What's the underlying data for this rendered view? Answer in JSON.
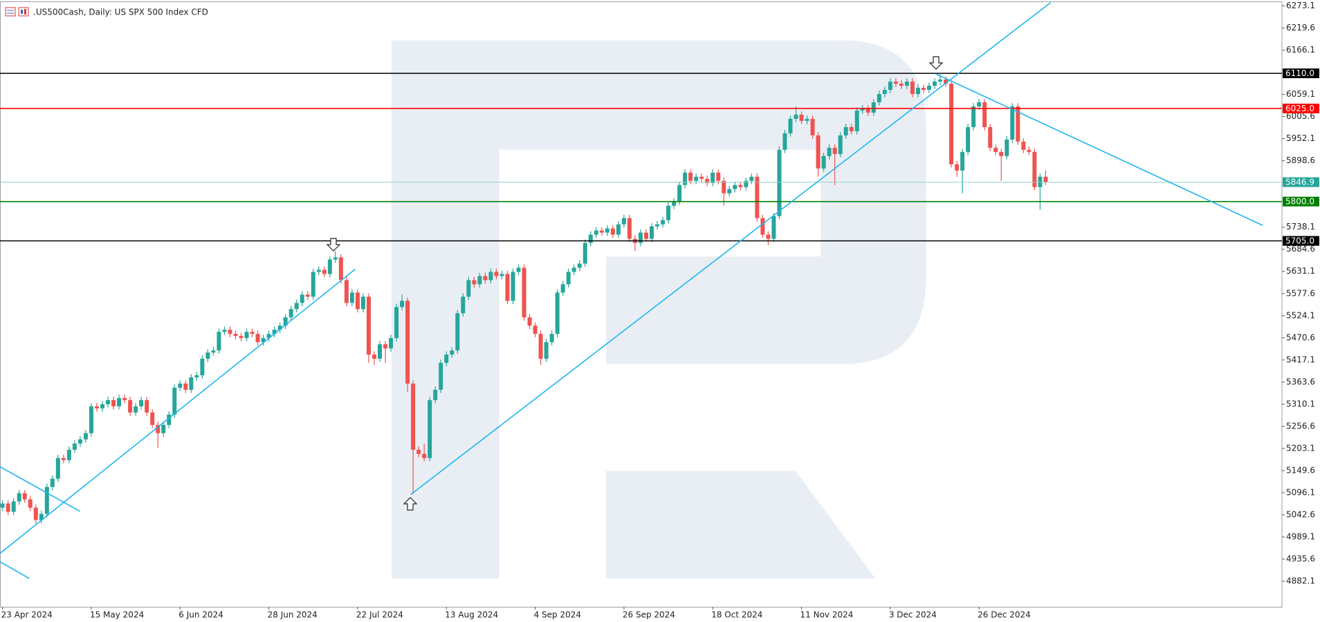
{
  "chart_data": {
    "type": "candlestick",
    "title": ".US500Cash, Daily:  US SPX 500 Index CFD",
    "up_color": "#26a69a",
    "down_color": "#ef5350",
    "categories": [
      "23 Apr 2024",
      null,
      null,
      null,
      null,
      null,
      null,
      null,
      null,
      null,
      null,
      null,
      null,
      null,
      null,
      null,
      "15 May 2024",
      null,
      null,
      null,
      null,
      null,
      null,
      null,
      null,
      null,
      null,
      null,
      null,
      null,
      null,
      null,
      "6 Jun 2024",
      null,
      null,
      null,
      null,
      null,
      null,
      null,
      null,
      null,
      null,
      null,
      null,
      null,
      null,
      null,
      "28 Jun 2024",
      null,
      null,
      null,
      null,
      null,
      null,
      null,
      null,
      null,
      null,
      null,
      null,
      null,
      null,
      null,
      "22 Jul 2024",
      null,
      null,
      null,
      null,
      null,
      null,
      null,
      null,
      null,
      null,
      null,
      null,
      null,
      null,
      null,
      "13 Aug 2024",
      null,
      null,
      null,
      null,
      null,
      null,
      null,
      null,
      null,
      null,
      null,
      null,
      null,
      null,
      null,
      "4 Sep 2024",
      null,
      null,
      null,
      null,
      null,
      null,
      null,
      null,
      null,
      null,
      null,
      null,
      null,
      null,
      null,
      "26 Sep 2024",
      null,
      null,
      null,
      null,
      null,
      null,
      null,
      null,
      null,
      null,
      null,
      null,
      null,
      null,
      null,
      "18 Oct 2024",
      null,
      null,
      null,
      null,
      null,
      null,
      null,
      null,
      null,
      null,
      null,
      null,
      null,
      null,
      null,
      "11 Nov 2024",
      null,
      null,
      null,
      null,
      null,
      null,
      null,
      null,
      null,
      null,
      null,
      null,
      null,
      null,
      null,
      "3 Dec 2024",
      null,
      null,
      null,
      null,
      null,
      null,
      null,
      null,
      null,
      null,
      null,
      null,
      null,
      null,
      null,
      "26 Dec 2024",
      null,
      null,
      null,
      null,
      null,
      null,
      null,
      null,
      null,
      null,
      null,
      null
    ],
    "open": [
      5060,
      5070,
      5050,
      5075,
      5095,
      5080,
      5060,
      5030,
      5045,
      5110,
      5130,
      5180,
      5175,
      5200,
      5215,
      5225,
      5240,
      5305,
      5300,
      5310,
      5320,
      5305,
      5325,
      5320,
      5290,
      5305,
      5320,
      5290,
      5260,
      5240,
      5260,
      5285,
      5350,
      5360,
      5345,
      5375,
      5380,
      5420,
      5435,
      5440,
      5485,
      5490,
      5480,
      5475,
      5470,
      5485,
      5480,
      5460,
      5470,
      5480,
      5490,
      5500,
      5520,
      5540,
      5555,
      5575,
      5570,
      5630,
      5635,
      5625,
      5660,
      5665,
      5610,
      5555,
      5580,
      5540,
      5570,
      5430,
      5420,
      5455,
      5445,
      5470,
      5545,
      5560,
      5360,
      5200,
      5190,
      5180,
      5320,
      5345,
      5410,
      5430,
      5440,
      5530,
      5570,
      5610,
      5600,
      5620,
      5610,
      5630,
      5620,
      5625,
      5560,
      5630,
      5640,
      5520,
      5500,
      5480,
      5420,
      5460,
      5480,
      5580,
      5600,
      5630,
      5640,
      5650,
      5700,
      5720,
      5730,
      5725,
      5735,
      5720,
      5745,
      5760,
      5710,
      5700,
      5725,
      5710,
      5740,
      5745,
      5755,
      5790,
      5800,
      5840,
      5870,
      5850,
      5860,
      5855,
      5845,
      5870,
      5850,
      5820,
      5830,
      5840,
      5835,
      5850,
      5860,
      5760,
      5720,
      5710,
      5765,
      5925,
      5965,
      6000,
      6010,
      5995,
      6000,
      5960,
      5880,
      5910,
      5930,
      5915,
      5960,
      5980,
      5970,
      6020,
      6025,
      6015,
      6040,
      6060,
      6070,
      6090,
      6085,
      6080,
      6090,
      6060,
      6075,
      6070,
      6080,
      6090,
      6095,
      6085,
      5890,
      5875,
      5920,
      5980,
      6030,
      6040,
      5980,
      5930,
      5920,
      5910,
      5950,
      6030,
      5945,
      5925,
      5920,
      5835,
      5860
    ],
    "high": [
      5078,
      5078,
      5083,
      5103,
      5103,
      5088,
      5068,
      5053,
      5118,
      5138,
      5188,
      5188,
      5208,
      5223,
      5233,
      5248,
      5313,
      5313,
      5318,
      5328,
      5328,
      5333,
      5333,
      5328,
      5313,
      5328,
      5328,
      5298,
      5268,
      5268,
      5293,
      5358,
      5368,
      5368,
      5383,
      5388,
      5428,
      5443,
      5448,
      5493,
      5498,
      5498,
      5488,
      5483,
      5493,
      5493,
      5488,
      5478,
      5488,
      5498,
      5508,
      5528,
      5548,
      5563,
      5583,
      5583,
      5638,
      5643,
      5643,
      5668,
      5680,
      5673,
      5618,
      5588,
      5588,
      5578,
      5578,
      5438,
      5463,
      5463,
      5478,
      5553,
      5575,
      5568,
      5368,
      5208,
      5215,
      5328,
      5353,
      5418,
      5438,
      5448,
      5538,
      5578,
      5618,
      5618,
      5628,
      5628,
      5638,
      5638,
      5633,
      5633,
      5638,
      5648,
      5648,
      5528,
      5508,
      5488,
      5468,
      5488,
      5588,
      5608,
      5638,
      5648,
      5658,
      5708,
      5728,
      5738,
      5738,
      5743,
      5743,
      5753,
      5768,
      5768,
      5718,
      5733,
      5733,
      5748,
      5753,
      5763,
      5798,
      5808,
      5848,
      5878,
      5878,
      5868,
      5868,
      5863,
      5878,
      5878,
      5858,
      5838,
      5848,
      5848,
      5858,
      5868,
      5868,
      5768,
      5728,
      5773,
      5933,
      5973,
      6008,
      6030,
      6018,
      6008,
      6008,
      5968,
      5918,
      5938,
      5938,
      5968,
      5988,
      5988,
      6028,
      6033,
      6033,
      6048,
      6068,
      6078,
      6098,
      6098,
      6093,
      6098,
      6098,
      6083,
      6083,
      6088,
      6098,
      6108,
      6103,
      6093,
      5898,
      5928,
      5988,
      6038,
      6048,
      6048,
      5988,
      5938,
      5928,
      5958,
      6038,
      6038,
      5953,
      5933,
      5928,
      5868,
      5875
    ],
    "low": [
      5052,
      5042,
      5042,
      5067,
      5072,
      5052,
      5022,
      5022,
      5037,
      5102,
      5122,
      5167,
      5167,
      5192,
      5207,
      5217,
      5232,
      5292,
      5292,
      5302,
      5297,
      5297,
      5312,
      5282,
      5282,
      5297,
      5282,
      5252,
      5205,
      5232,
      5252,
      5277,
      5342,
      5337,
      5337,
      5367,
      5372,
      5412,
      5427,
      5432,
      5477,
      5472,
      5467,
      5462,
      5462,
      5472,
      5452,
      5452,
      5462,
      5472,
      5482,
      5492,
      5512,
      5532,
      5547,
      5562,
      5562,
      5622,
      5617,
      5617,
      5652,
      5602,
      5547,
      5547,
      5532,
      5532,
      5410,
      5405,
      5412,
      5410,
      5437,
      5462,
      5537,
      5340,
      5093,
      5182,
      5172,
      5172,
      5312,
      5337,
      5402,
      5422,
      5432,
      5522,
      5562,
      5592,
      5592,
      5602,
      5602,
      5612,
      5612,
      5552,
      5552,
      5622,
      5512,
      5492,
      5472,
      5405,
      5412,
      5452,
      5472,
      5572,
      5592,
      5622,
      5632,
      5642,
      5692,
      5712,
      5717,
      5717,
      5712,
      5712,
      5737,
      5702,
      5680,
      5692,
      5702,
      5702,
      5732,
      5737,
      5747,
      5782,
      5792,
      5832,
      5842,
      5842,
      5847,
      5837,
      5837,
      5842,
      5790,
      5812,
      5822,
      5827,
      5827,
      5842,
      5752,
      5712,
      5695,
      5702,
      5757,
      5917,
      5957,
      5992,
      5987,
      5987,
      5952,
      5860,
      5872,
      5902,
      5840,
      5907,
      5952,
      5962,
      5962,
      6012,
      6007,
      6007,
      6032,
      6052,
      6062,
      6077,
      6072,
      6072,
      6052,
      6052,
      6062,
      6062,
      6072,
      6082,
      6077,
      5882,
      5860,
      5820,
      5912,
      5972,
      6022,
      5972,
      5922,
      5912,
      5850,
      5902,
      5942,
      5937,
      5917,
      5912,
      5827,
      5780,
      5840
    ],
    "close": [
      5070,
      5050,
      5075,
      5095,
      5080,
      5060,
      5030,
      5045,
      5110,
      5130,
      5180,
      5175,
      5200,
      5215,
      5225,
      5240,
      5305,
      5300,
      5310,
      5320,
      5305,
      5325,
      5320,
      5290,
      5305,
      5320,
      5290,
      5260,
      5240,
      5260,
      5285,
      5350,
      5360,
      5345,
      5375,
      5380,
      5420,
      5435,
      5440,
      5485,
      5490,
      5480,
      5475,
      5470,
      5485,
      5480,
      5460,
      5470,
      5480,
      5490,
      5500,
      5520,
      5540,
      5555,
      5575,
      5570,
      5630,
      5635,
      5625,
      5660,
      5665,
      5610,
      5555,
      5580,
      5540,
      5570,
      5430,
      5420,
      5455,
      5445,
      5470,
      5545,
      5560,
      5360,
      5200,
      5190,
      5180,
      5320,
      5345,
      5410,
      5430,
      5440,
      5530,
      5570,
      5610,
      5600,
      5620,
      5610,
      5630,
      5620,
      5625,
      5560,
      5630,
      5640,
      5520,
      5500,
      5480,
      5420,
      5460,
      5480,
      5580,
      5600,
      5630,
      5640,
      5650,
      5700,
      5720,
      5730,
      5725,
      5735,
      5720,
      5745,
      5760,
      5710,
      5700,
      5725,
      5710,
      5740,
      5745,
      5755,
      5790,
      5800,
      5840,
      5870,
      5850,
      5860,
      5855,
      5845,
      5870,
      5850,
      5820,
      5830,
      5840,
      5835,
      5850,
      5860,
      5760,
      5720,
      5710,
      5765,
      5925,
      5965,
      6000,
      6010,
      5995,
      6000,
      5960,
      5880,
      5910,
      5930,
      5915,
      5960,
      5980,
      5970,
      6020,
      6025,
      6015,
      6040,
      6060,
      6070,
      6090,
      6085,
      6080,
      6090,
      6060,
      6075,
      6070,
      6080,
      6090,
      6095,
      6085,
      5890,
      5875,
      5920,
      5980,
      6030,
      6040,
      5980,
      5930,
      5920,
      5910,
      5950,
      6030,
      5945,
      5925,
      5920,
      5835,
      5860,
      5846.9
    ],
    "ylim": [
      4820.3,
      6287.3
    ],
    "yticks": [
      6273.1,
      6219.6,
      6166.1,
      6059.1,
      6005.6,
      5952.1,
      5898.6,
      5738.1,
      5684.6,
      5631.1,
      5577.6,
      5524.1,
      5470.6,
      5417.1,
      5363.6,
      5310.1,
      5256.6,
      5203.1,
      5149.6,
      5096.1,
      5042.6,
      4989.1,
      4935.6,
      4882.1
    ],
    "levels": [
      {
        "value": 6110,
        "label": "6110.0",
        "color": "#000000"
      },
      {
        "value": 6025,
        "label": "6025.0",
        "color": "#ff0000"
      },
      {
        "value": 5846.9,
        "label": "5846.9",
        "color": "#26a69a"
      },
      {
        "value": 5800,
        "label": "5800.0",
        "color": "#008000"
      },
      {
        "value": 5705,
        "label": "5705.0",
        "color": "#000000"
      }
    ]
  }
}
